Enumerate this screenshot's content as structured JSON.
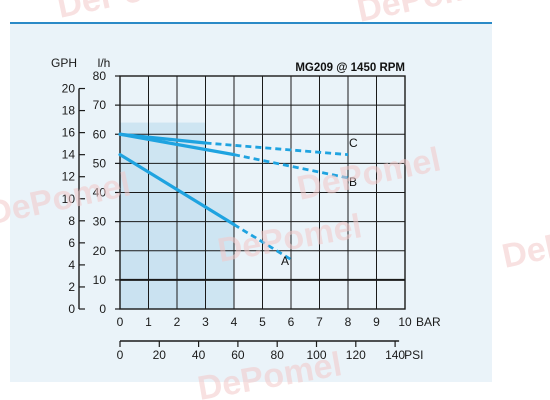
{
  "chart_data": {
    "type": "line",
    "title": "MG209 @ 1450 RPM",
    "y_axes": {
      "left_outer": {
        "label": "GPH",
        "ticks": [
          0,
          2,
          4,
          6,
          8,
          10,
          12,
          14,
          16,
          18,
          20
        ]
      },
      "left_inner": {
        "label": "l/h",
        "ticks": [
          0,
          10,
          20,
          30,
          40,
          50,
          60,
          70,
          80
        ]
      }
    },
    "x_axes": {
      "bar": {
        "label": "BAR",
        "ticks": [
          0,
          1,
          2,
          3,
          4,
          5,
          6,
          7,
          8,
          9,
          10
        ]
      },
      "psi": {
        "label": "PSI",
        "ticks": [
          0,
          20,
          40,
          60,
          80,
          100,
          120,
          140
        ]
      }
    },
    "xlim": [
      0,
      10
    ],
    "ylim": [
      0,
      80
    ],
    "grid": true,
    "shaded_regions": [
      {
        "x": [
          0,
          3
        ],
        "y": [
          0,
          64
        ]
      },
      {
        "x": [
          0,
          4
        ],
        "y": [
          0,
          40
        ]
      }
    ],
    "series": [
      {
        "name": "A",
        "solid": [
          [
            0,
            53
          ],
          [
            4,
            29
          ]
        ],
        "dashed": [
          [
            4,
            29
          ],
          [
            6,
            17
          ]
        ]
      },
      {
        "name": "B",
        "solid": [
          [
            0,
            60
          ],
          [
            4,
            53
          ]
        ],
        "dashed": [
          [
            4,
            53
          ],
          [
            8,
            45
          ]
        ]
      },
      {
        "name": "C",
        "solid": [
          [
            0,
            60
          ],
          [
            3,
            57
          ]
        ],
        "dashed": [
          [
            3,
            57
          ],
          [
            8,
            53
          ]
        ]
      }
    ],
    "series_color": "#1fa3e0",
    "reference_line_y": 10,
    "watermark": "DePomel"
  }
}
